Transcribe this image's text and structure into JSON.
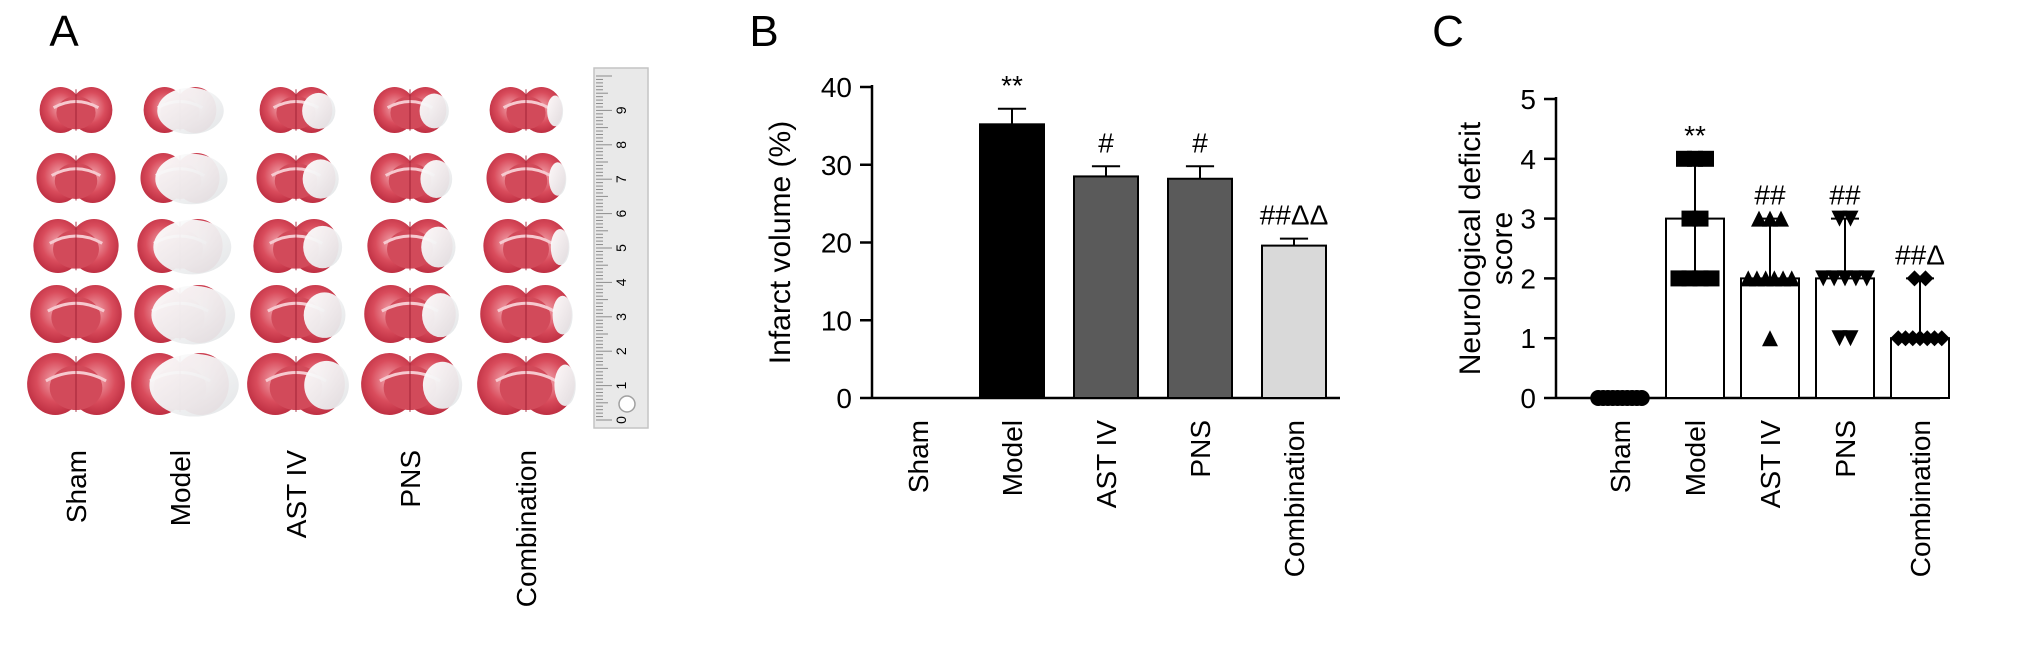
{
  "panels": {
    "a": {
      "letter": "A",
      "groups": [
        "Sham",
        "Model",
        "AST IV",
        "PNS",
        "Combination"
      ],
      "ruler_numbers": [
        "0",
        "1",
        "2",
        "3",
        "4",
        "5",
        "6",
        "7",
        "8",
        "9"
      ]
    },
    "b": {
      "letter": "B"
    },
    "c": {
      "letter": "C"
    }
  },
  "chart_data": [
    {
      "panel": "B",
      "type": "bar",
      "ylabel": "Infarct volume (%)",
      "ylim": [
        0,
        40
      ],
      "yticks": [
        0,
        10,
        20,
        30,
        40
      ],
      "categories": [
        "Sham",
        "Model",
        "AST IV",
        "PNS",
        "Combination"
      ],
      "values": [
        0,
        35.2,
        28.5,
        28.2,
        19.6
      ],
      "errors": [
        0,
        2.0,
        1.3,
        1.6,
        0.9
      ],
      "bar_colors": [
        "#ffffff",
        "#000000",
        "#5a5a5a",
        "#5a5a5a",
        "#d9d9d9"
      ],
      "annotations": [
        "",
        "**",
        "#",
        "#",
        "##ΔΔ"
      ]
    },
    {
      "panel": "C",
      "type": "bar",
      "ylabel": "Neurological deficit score",
      "ylabel_lines": [
        "Neurological deficit",
        "score"
      ],
      "ylim": [
        0,
        5
      ],
      "yticks": [
        0,
        1,
        2,
        3,
        4,
        5
      ],
      "categories": [
        "Sham",
        "Model",
        "AST IV",
        "PNS",
        "Combination"
      ],
      "values": [
        0,
        3,
        2,
        2,
        1
      ],
      "err_low": [
        0,
        1,
        0,
        0,
        0
      ],
      "err_high": [
        0,
        1,
        1,
        1,
        1
      ],
      "bar_colors": [
        "#ffffff",
        "#ffffff",
        "#ffffff",
        "#ffffff",
        "#ffffff"
      ],
      "markers": [
        "circle",
        "square",
        "triangle",
        "triangle-down",
        "diamond"
      ],
      "points": [
        [
          0,
          0,
          0,
          0,
          0,
          0,
          0,
          0,
          0,
          0
        ],
        [
          4,
          4,
          4,
          3,
          3,
          2,
          2,
          2,
          2
        ],
        [
          3,
          3,
          3,
          2,
          2,
          2,
          2,
          2,
          2,
          1
        ],
        [
          3,
          3,
          2,
          2,
          2,
          2,
          2,
          1,
          1
        ],
        [
          2,
          2,
          1,
          1,
          1,
          1,
          1,
          1,
          1
        ]
      ],
      "annotations": [
        "",
        "**",
        "##",
        "##",
        "##Δ"
      ]
    }
  ]
}
